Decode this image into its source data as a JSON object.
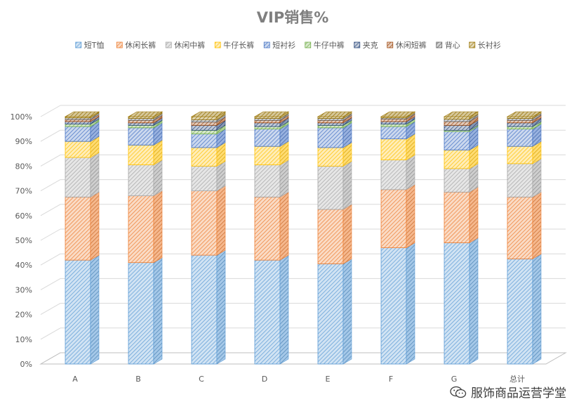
{
  "chart_data": {
    "type": "bar",
    "stacked": true,
    "title": "VIP销售%",
    "categories": [
      "A",
      "B",
      "C",
      "D",
      "E",
      "F",
      "G",
      "总计"
    ],
    "ylim": [
      0,
      100
    ],
    "yticks": [
      "0%",
      "10%",
      "20%",
      "30%",
      "40%",
      "50%",
      "60%",
      "70%",
      "80%",
      "90%",
      "100%"
    ],
    "legend_position": "top",
    "grid": true,
    "series": [
      {
        "name": "短T恤",
        "color": "#5b9bd5",
        "values": [
          42,
          41,
          44,
          42,
          40.5,
          47,
          49,
          42.5
        ]
      },
      {
        "name": "休闲长裤",
        "color": "#ed7d31",
        "values": [
          25.5,
          27,
          26,
          25.5,
          22,
          23.5,
          20.5,
          25
        ]
      },
      {
        "name": "休闲中裤",
        "color": "#a5a5a5",
        "values": [
          16,
          12.5,
          10,
          13,
          17.5,
          12,
          9.5,
          13.5
        ]
      },
      {
        "name": "牛仔长裤",
        "color": "#ffc000",
        "values": [
          6.5,
          8,
          7.5,
          7.5,
          7.5,
          8.5,
          7.5,
          7
        ]
      },
      {
        "name": "短衬衫",
        "color": "#4472c4",
        "values": [
          6,
          7,
          5.5,
          7,
          8,
          5,
          7.5,
          7
        ]
      },
      {
        "name": "牛仔中裤",
        "color": "#70ad47",
        "values": [
          1,
          1,
          1.5,
          1,
          1,
          1,
          0.5,
          1
        ]
      },
      {
        "name": "夹克",
        "color": "#264478",
        "values": [
          1,
          1,
          2,
          1.5,
          1,
          1,
          2,
          1.5
        ]
      },
      {
        "name": "休闲短裤",
        "color": "#9e480e",
        "values": [
          0.8,
          1,
          1.3,
          1,
          1,
          1,
          1.5,
          1
        ]
      },
      {
        "name": "背心",
        "color": "#636363",
        "values": [
          0.7,
          0.8,
          1,
          0.8,
          0.8,
          0.5,
          1,
          0.8
        ]
      },
      {
        "name": "长衬衫",
        "color": "#997300",
        "values": [
          0.5,
          0.7,
          1.2,
          0.7,
          0.7,
          0.5,
          1,
          0.7
        ]
      }
    ]
  },
  "watermark": {
    "text": "服饰商品运营学堂",
    "icon": "wechat-icon"
  }
}
